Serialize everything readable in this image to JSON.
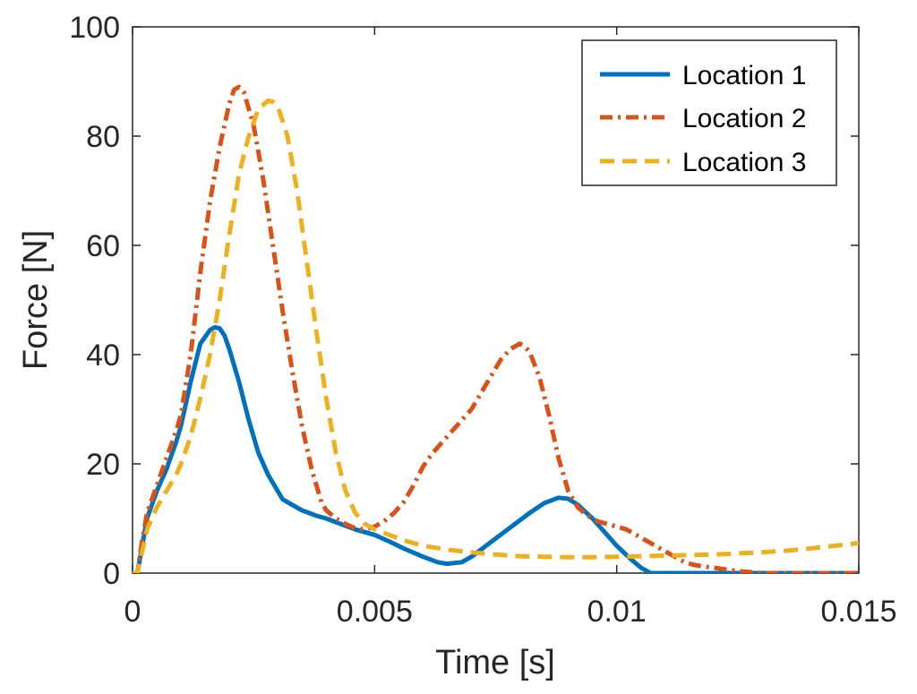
{
  "chart_data": {
    "type": "line",
    "title": "",
    "xlabel": "Time [s]",
    "ylabel": "Force [N]",
    "xlim": [
      0,
      0.015
    ],
    "ylim": [
      0,
      100
    ],
    "xticks": [
      0,
      0.005,
      0.01,
      0.015
    ],
    "xtick_labels": [
      "0",
      "0.005",
      "0.01",
      "0.015"
    ],
    "yticks": [
      0,
      20,
      40,
      60,
      80,
      100
    ],
    "ytick_labels": [
      "0",
      "20",
      "40",
      "60",
      "80",
      "100"
    ],
    "grid": false,
    "legend": "top-right",
    "series": [
      {
        "name": "Location 1",
        "color": "#0072BD",
        "style": "solid",
        "points": [
          [
            0,
            0
          ],
          [
            0.0001,
            0
          ],
          [
            0.0002,
            5
          ],
          [
            0.0003,
            10
          ],
          [
            0.0005,
            15
          ],
          [
            0.0007,
            19
          ],
          [
            0.0009,
            24
          ],
          [
            0.001,
            27
          ],
          [
            0.0012,
            35
          ],
          [
            0.0014,
            42
          ],
          [
            0.0016,
            44.5
          ],
          [
            0.0017,
            45
          ],
          [
            0.0018,
            44.8
          ],
          [
            0.0019,
            43.5
          ],
          [
            0.002,
            41
          ],
          [
            0.0022,
            35
          ],
          [
            0.0024,
            28
          ],
          [
            0.0026,
            22
          ],
          [
            0.0028,
            18
          ],
          [
            0.003,
            15
          ],
          [
            0.0031,
            13.5
          ],
          [
            0.0033,
            12.5
          ],
          [
            0.0035,
            11.5
          ],
          [
            0.0038,
            10.5
          ],
          [
            0.004,
            10
          ],
          [
            0.0043,
            9
          ],
          [
            0.0046,
            8
          ],
          [
            0.005,
            7
          ],
          [
            0.0053,
            5.8
          ],
          [
            0.0056,
            4.5
          ],
          [
            0.006,
            3
          ],
          [
            0.0063,
            2
          ],
          [
            0.0065,
            1.7
          ],
          [
            0.0068,
            2
          ],
          [
            0.007,
            3
          ],
          [
            0.0073,
            5
          ],
          [
            0.0076,
            7
          ],
          [
            0.0079,
            9
          ],
          [
            0.0082,
            11
          ],
          [
            0.0085,
            12.8
          ],
          [
            0.0088,
            13.8
          ],
          [
            0.009,
            13.6
          ],
          [
            0.0092,
            12.5
          ],
          [
            0.0095,
            10
          ],
          [
            0.0098,
            7
          ],
          [
            0.01,
            5
          ],
          [
            0.0103,
            2.5
          ],
          [
            0.0105,
            1
          ],
          [
            0.0107,
            0
          ],
          [
            0.011,
            0
          ],
          [
            0.012,
            0
          ],
          [
            0.013,
            0
          ],
          [
            0.014,
            0
          ],
          [
            0.015,
            0
          ]
        ]
      },
      {
        "name": "Location 2",
        "color": "#D95319",
        "style": "dashdot",
        "points": [
          [
            0,
            0
          ],
          [
            0.0001,
            0
          ],
          [
            0.0002,
            6
          ],
          [
            0.0003,
            11
          ],
          [
            0.0005,
            16
          ],
          [
            0.0007,
            21
          ],
          [
            0.0009,
            26
          ],
          [
            0.001,
            29
          ],
          [
            0.0012,
            40
          ],
          [
            0.0014,
            55
          ],
          [
            0.0016,
            68
          ],
          [
            0.0018,
            78
          ],
          [
            0.002,
            86
          ],
          [
            0.0021,
            88.5
          ],
          [
            0.0022,
            89
          ],
          [
            0.0023,
            88
          ],
          [
            0.0025,
            82
          ],
          [
            0.0027,
            72
          ],
          [
            0.0029,
            60
          ],
          [
            0.0031,
            48
          ],
          [
            0.0033,
            37
          ],
          [
            0.0035,
            27
          ],
          [
            0.0037,
            19
          ],
          [
            0.0039,
            13
          ],
          [
            0.004,
            11.5
          ],
          [
            0.0042,
            10
          ],
          [
            0.0044,
            9
          ],
          [
            0.0046,
            8.2
          ],
          [
            0.0048,
            8
          ],
          [
            0.005,
            8.5
          ],
          [
            0.0052,
            9.5
          ],
          [
            0.0054,
            11
          ],
          [
            0.0056,
            13
          ],
          [
            0.0058,
            16
          ],
          [
            0.006,
            19.5
          ],
          [
            0.0062,
            22
          ],
          [
            0.0064,
            24
          ],
          [
            0.0066,
            26
          ],
          [
            0.0068,
            28
          ],
          [
            0.007,
            30
          ],
          [
            0.0072,
            33
          ],
          [
            0.0074,
            36
          ],
          [
            0.0076,
            39
          ],
          [
            0.0078,
            41
          ],
          [
            0.008,
            42
          ],
          [
            0.0081,
            41.5
          ],
          [
            0.0082,
            40.5
          ],
          [
            0.0084,
            36
          ],
          [
            0.0086,
            29
          ],
          [
            0.0088,
            21
          ],
          [
            0.009,
            15
          ],
          [
            0.0092,
            12
          ],
          [
            0.0094,
            10.5
          ],
          [
            0.0096,
            9.5
          ],
          [
            0.0098,
            9
          ],
          [
            0.01,
            8.5
          ],
          [
            0.0102,
            8
          ],
          [
            0.0104,
            7
          ],
          [
            0.0106,
            6
          ],
          [
            0.0108,
            5
          ],
          [
            0.011,
            4
          ],
          [
            0.0112,
            3
          ],
          [
            0.0114,
            2
          ],
          [
            0.0116,
            1.5
          ],
          [
            0.0118,
            1.2
          ],
          [
            0.012,
            1
          ],
          [
            0.0123,
            0.6
          ],
          [
            0.0126,
            0.3
          ],
          [
            0.013,
            0
          ],
          [
            0.014,
            0
          ],
          [
            0.015,
            0
          ]
        ]
      },
      {
        "name": "Location 3",
        "color": "#EDB120",
        "style": "dashed",
        "points": [
          [
            0,
            0
          ],
          [
            0.0001,
            0
          ],
          [
            0.0002,
            4
          ],
          [
            0.0003,
            8
          ],
          [
            0.0005,
            12
          ],
          [
            0.0007,
            15
          ],
          [
            0.0009,
            18
          ],
          [
            0.001,
            20
          ],
          [
            0.0012,
            25
          ],
          [
            0.0014,
            32
          ],
          [
            0.0016,
            40
          ],
          [
            0.0018,
            50
          ],
          [
            0.002,
            62
          ],
          [
            0.0022,
            73
          ],
          [
            0.0024,
            80
          ],
          [
            0.0026,
            85
          ],
          [
            0.0028,
            86.5
          ],
          [
            0.0029,
            86.3
          ],
          [
            0.003,
            85.5
          ],
          [
            0.0032,
            80
          ],
          [
            0.0034,
            70
          ],
          [
            0.0036,
            57
          ],
          [
            0.0038,
            44
          ],
          [
            0.004,
            32
          ],
          [
            0.0042,
            22
          ],
          [
            0.0044,
            15
          ],
          [
            0.0046,
            11
          ],
          [
            0.0048,
            9
          ],
          [
            0.005,
            8
          ],
          [
            0.0053,
            7
          ],
          [
            0.0056,
            6
          ],
          [
            0.006,
            5
          ],
          [
            0.0065,
            4.3
          ],
          [
            0.007,
            3.8
          ],
          [
            0.0075,
            3.4
          ],
          [
            0.008,
            3.1
          ],
          [
            0.0085,
            3
          ],
          [
            0.009,
            2.9
          ],
          [
            0.0095,
            2.9
          ],
          [
            0.01,
            3
          ],
          [
            0.0105,
            3.1
          ],
          [
            0.011,
            3.2
          ],
          [
            0.0115,
            3.3
          ],
          [
            0.012,
            3.4
          ],
          [
            0.0125,
            3.6
          ],
          [
            0.013,
            3.8
          ],
          [
            0.0135,
            4.1
          ],
          [
            0.014,
            4.5
          ],
          [
            0.0145,
            5
          ],
          [
            0.015,
            5.5
          ]
        ]
      }
    ]
  }
}
